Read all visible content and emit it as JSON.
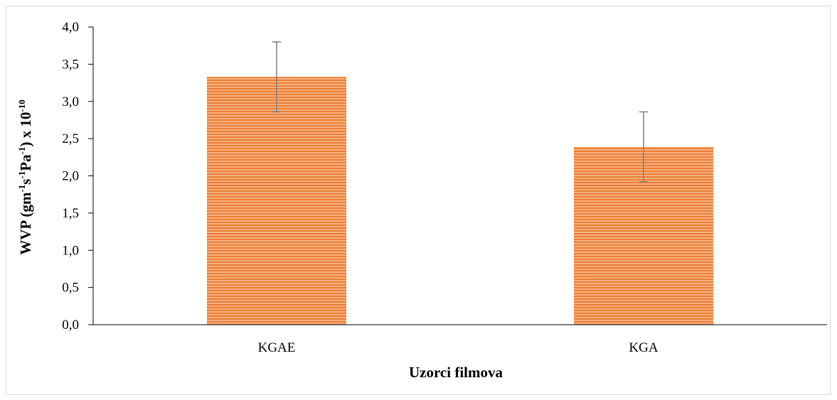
{
  "chart_data": {
    "type": "bar",
    "categories": [
      "KGAE",
      "KGA"
    ],
    "values": [
      3.33,
      2.39
    ],
    "error_bars": [
      0.47,
      0.47
    ],
    "ylim": [
      0,
      4.0
    ],
    "yticks": [
      "0,0",
      "0,5",
      "1,0",
      "1,5",
      "2,0",
      "2,5",
      "3,0",
      "3,5",
      "4,0"
    ],
    "xlabel": "Uzorci filmova",
    "ylabel": {
      "parts": [
        "WVP (gm",
        "-1",
        "s",
        "-1",
        "Pa",
        "-1",
        ") x 10",
        "-10"
      ]
    },
    "bar_color": "#f4b183",
    "bar_stripe_color": "#ed7d31",
    "error_bar_color": "#7f7f7f",
    "grid": false
  }
}
